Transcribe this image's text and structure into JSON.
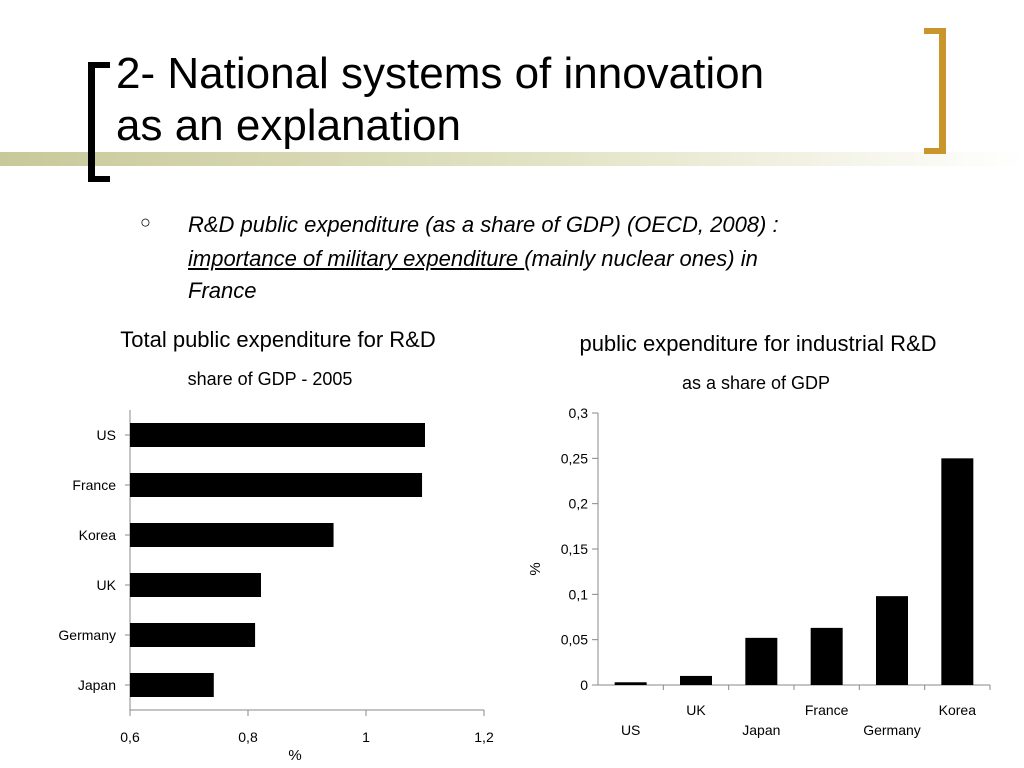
{
  "slide": {
    "title_line1": "2- National systems of innovation",
    "title_line2": "as an explanation",
    "bullet_main": "R&D public expenditure (as a share of GDP) (OECD, 2008) :",
    "bullet_underlined": "importance of military expenditure ",
    "bullet_rest": "(mainly nuclear ones) in",
    "bullet_end": "France",
    "accent_color": "#c9962b"
  },
  "chart_data": [
    {
      "type": "bar",
      "orientation": "horizontal",
      "title": "Total public expenditure for R&D",
      "subtitle": "share of GDP - 2005",
      "xlabel": "%",
      "categories": [
        "US",
        "France",
        "Korea",
        "UK",
        "Germany",
        "Japan"
      ],
      "values": [
        1.1,
        1.095,
        0.945,
        0.822,
        0.812,
        0.742
      ],
      "xlim": [
        0.6,
        1.2
      ],
      "ticks": [
        "0,6",
        "0,8",
        "1",
        "1,2"
      ],
      "tick_values": [
        0.6,
        0.8,
        1.0,
        1.2
      ],
      "grid": false
    },
    {
      "type": "bar",
      "orientation": "vertical",
      "title": "public expenditure for industrial R&D",
      "subtitle": "as a share of GDP",
      "ylabel": "%",
      "categories": [
        "US",
        "UK",
        "Japan",
        "France",
        "Germany",
        "Korea"
      ],
      "values": [
        0.003,
        0.01,
        0.052,
        0.063,
        0.098,
        0.25
      ],
      "ylim": [
        0,
        0.3
      ],
      "ticks": [
        "0",
        "0,05",
        "0,1",
        "0,15",
        "0,2",
        "0,25",
        "0,3"
      ],
      "tick_values": [
        0,
        0.05,
        0.1,
        0.15,
        0.2,
        0.25,
        0.3
      ],
      "grid": false
    }
  ]
}
